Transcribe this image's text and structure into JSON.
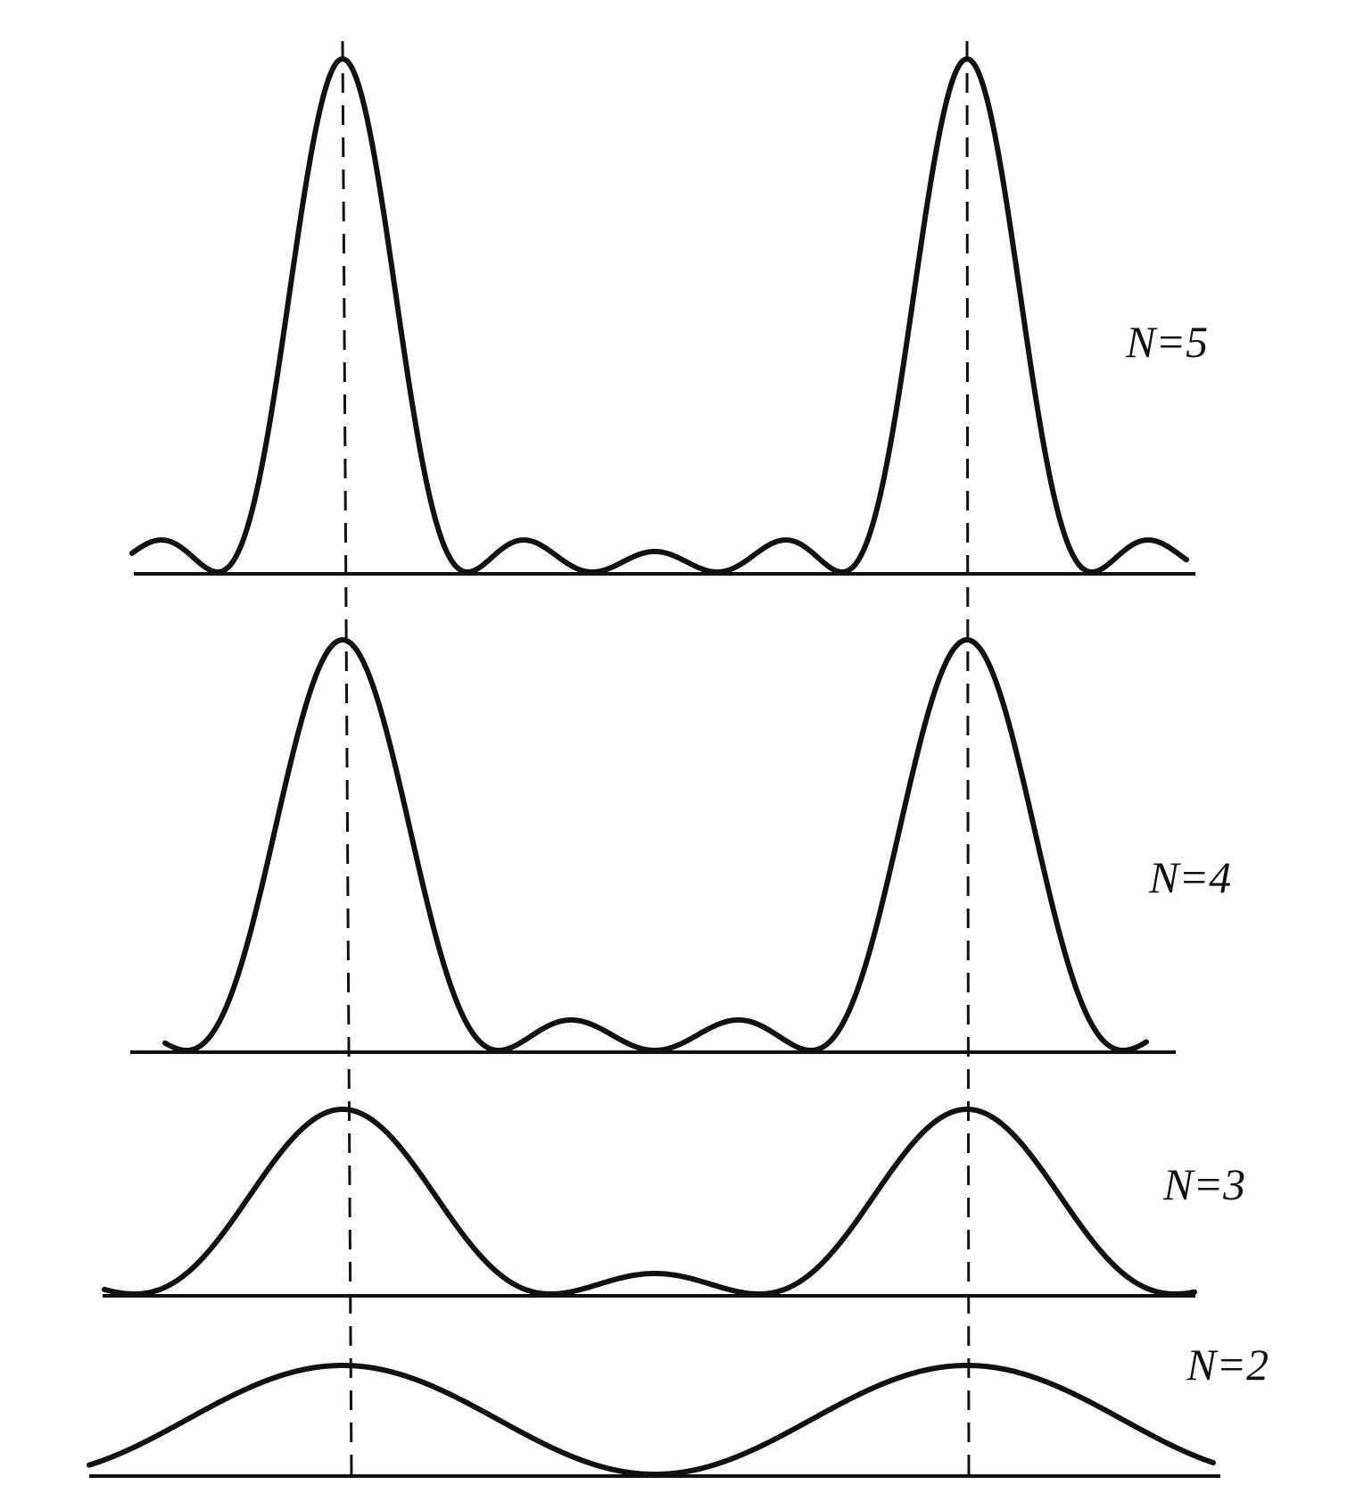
{
  "panels": [
    {
      "label": "N=5"
    },
    {
      "label": "N=4"
    },
    {
      "label": "N=3"
    },
    {
      "label": "N=2"
    }
  ]
}
